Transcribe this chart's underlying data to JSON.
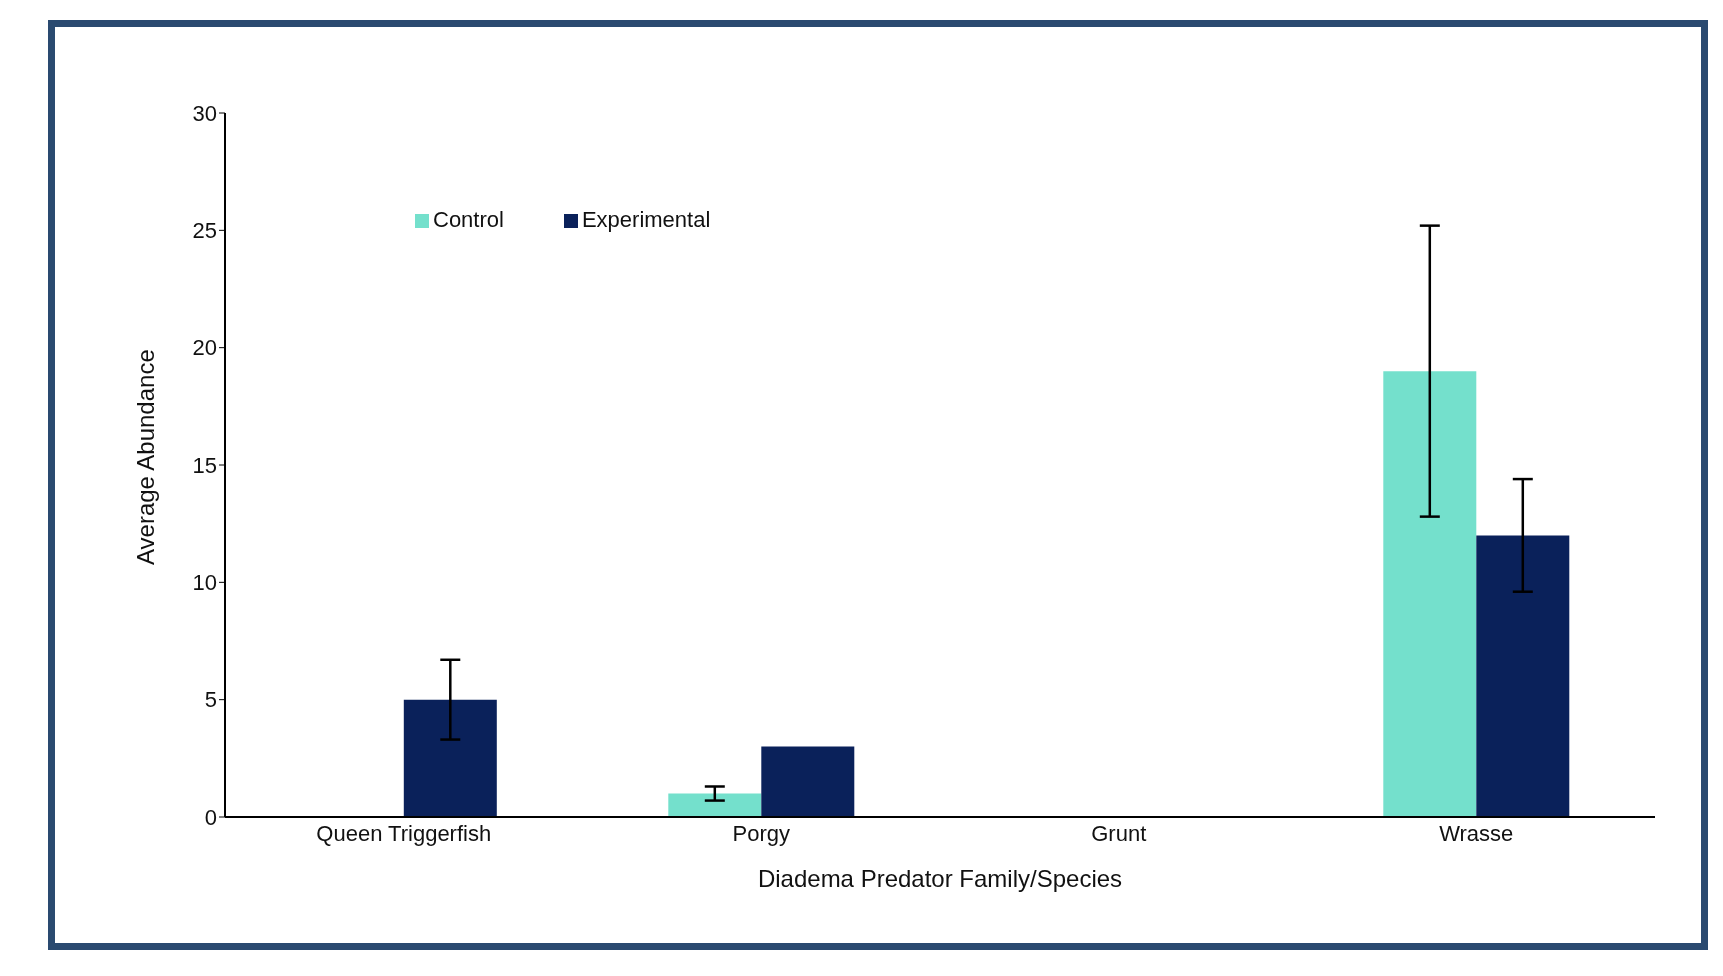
{
  "chart_data": {
    "type": "bar",
    "xlabel": "Diadema Predator Family/Species",
    "ylabel": "Average Abundance",
    "categories": [
      "Queen Triggerfish",
      "Porgy",
      "Grunt",
      "Wrasse"
    ],
    "series": [
      {
        "name": "Control",
        "color": "#74e0cc",
        "values": [
          0,
          1,
          0,
          19
        ],
        "errors": [
          null,
          0.3,
          null,
          6.2
        ]
      },
      {
        "name": "Experimental",
        "color": "#0a215a",
        "values": [
          5,
          3,
          0,
          12
        ],
        "errors": [
          1.7,
          0,
          null,
          2.4
        ]
      }
    ],
    "ylim": [
      0,
      30
    ],
    "yticks": [
      0,
      5,
      10,
      15,
      20,
      25,
      30
    ],
    "legend": "top left"
  }
}
